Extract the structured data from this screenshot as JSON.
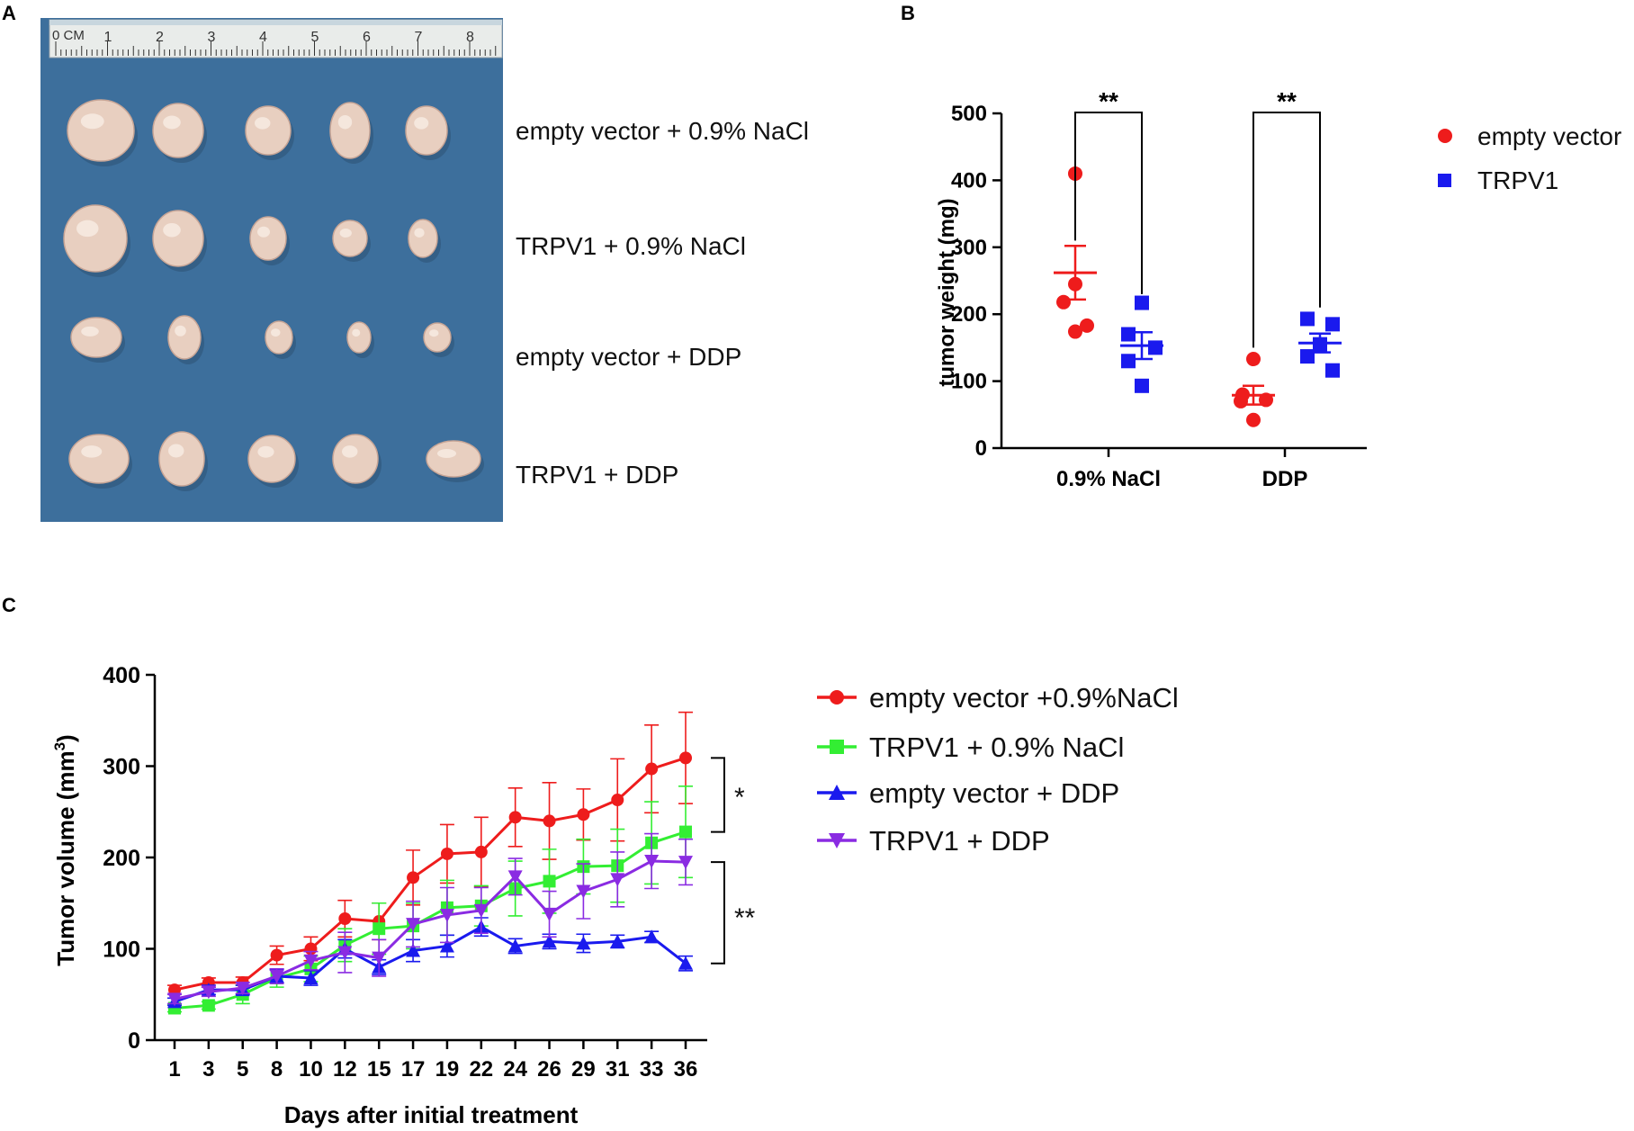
{
  "panels": {
    "a": {
      "letter": "A"
    },
    "b": {
      "letter": "B"
    },
    "c": {
      "letter": "C"
    }
  },
  "photo": {
    "ruler_text": "0 CM",
    "ruler_numbers": [
      "1",
      "2",
      "3",
      "4",
      "5",
      "6",
      "7",
      "8"
    ],
    "row_labels": [
      "empty vector + 0.9% NaCl",
      "TRPV1 + 0.9% NaCl",
      "empty vector + DDP",
      "TRPV1 + DDP"
    ],
    "colors": {
      "cloth": "#3d6f9c",
      "tumor": "#e8cfc0"
    }
  },
  "chart_data": [
    {
      "type": "scatter",
      "panel": "B",
      "title": "",
      "ylabel": "tumor weight (mg)",
      "xlabel": "",
      "ylim": [
        0,
        500
      ],
      "yticks": [
        0,
        100,
        200,
        300,
        400,
        500
      ],
      "categories": [
        "0.9% NaCl",
        "DDP"
      ],
      "series": [
        {
          "name": "empty vector",
          "color": "#ee1c1c",
          "marker": "circle",
          "groups": [
            {
              "category": "0.9% NaCl",
              "values": [
                410,
                245,
                218,
                183,
                174
              ],
              "mean": 262,
              "sem": 40
            },
            {
              "category": "DDP",
              "values": [
                133,
                80,
                72,
                70,
                42
              ],
              "mean": 79,
              "sem": 14
            }
          ]
        },
        {
          "name": "TRPV1",
          "color": "#1a1aee",
          "marker": "square",
          "groups": [
            {
              "category": "0.9% NaCl",
              "values": [
                217,
                170,
                150,
                130,
                93
              ],
              "mean": 153,
              "sem": 20
            },
            {
              "category": "DDP",
              "values": [
                193,
                185,
                155,
                137,
                116
              ],
              "mean": 157,
              "sem": 14
            }
          ]
        }
      ],
      "significance": [
        {
          "category": "0.9% NaCl",
          "label": "**"
        },
        {
          "category": "DDP",
          "label": "**"
        }
      ],
      "legend": {
        "position": "top-right",
        "entries": [
          "empty vector",
          "TRPV1"
        ]
      }
    },
    {
      "type": "line",
      "panel": "C",
      "title": "",
      "xlabel": "Days after initial treatment",
      "ylabel": "Tumor volume (mm",
      "ylabel_sup": "3",
      "ylabel_close": ")",
      "ylim": [
        0,
        400
      ],
      "yticks": [
        0,
        100,
        200,
        300,
        400
      ],
      "categories": [
        "1",
        "3",
        "5",
        "8",
        "10",
        "12",
        "15",
        "17",
        "19",
        "22",
        "24",
        "26",
        "29",
        "31",
        "33",
        "36"
      ],
      "series": [
        {
          "name": "empty vector +0.9%NaCl",
          "color": "#ee1c1c",
          "marker": "circle",
          "values": [
            55,
            63,
            63,
            93,
            100,
            133,
            130,
            178,
            204,
            206,
            244,
            240,
            247,
            263,
            297,
            309
          ],
          "errors": [
            5,
            5,
            6,
            10,
            13,
            20,
            20,
            30,
            32,
            38,
            32,
            42,
            28,
            45,
            48,
            50
          ]
        },
        {
          "name": "TRPV1 + 0.9% NaCl",
          "color": "#33ee33",
          "marker": "square",
          "values": [
            35,
            38,
            50,
            68,
            78,
            104,
            122,
            125,
            145,
            147,
            166,
            174,
            190,
            191,
            216,
            228
          ],
          "errors": [
            4,
            4,
            10,
            10,
            14,
            18,
            28,
            25,
            30,
            22,
            30,
            35,
            30,
            40,
            45,
            50
          ]
        },
        {
          "name": "empty vector + DDP",
          "color": "#1a1aee",
          "marker": "triangle-up",
          "values": [
            42,
            55,
            55,
            70,
            68,
            100,
            80,
            98,
            103,
            124,
            103,
            108,
            106,
            108,
            113,
            84
          ],
          "errors": [
            4,
            5,
            5,
            7,
            8,
            10,
            8,
            12,
            12,
            10,
            8,
            8,
            10,
            7,
            6,
            8
          ]
        },
        {
          "name": "TRPV1 + DDP",
          "color": "#8a2be2",
          "marker": "triangle-down",
          "values": [
            45,
            53,
            57,
            70,
            87,
            96,
            90,
            127,
            137,
            142,
            179,
            138,
            163,
            176,
            196,
            195
          ],
          "errors": [
            5,
            5,
            6,
            8,
            10,
            22,
            20,
            25,
            30,
            25,
            20,
            25,
            30,
            30,
            30,
            25
          ]
        }
      ],
      "significance": [
        {
          "label": "*",
          "from": 309,
          "to": 228
        },
        {
          "label": "**",
          "from": 195,
          "to": 84
        }
      ],
      "legend": {
        "position": "right",
        "entries": [
          "empty vector +0.9%NaCl",
          "TRPV1 + 0.9% NaCl",
          "empty vector + DDP",
          "TRPV1 + DDP"
        ]
      }
    }
  ]
}
